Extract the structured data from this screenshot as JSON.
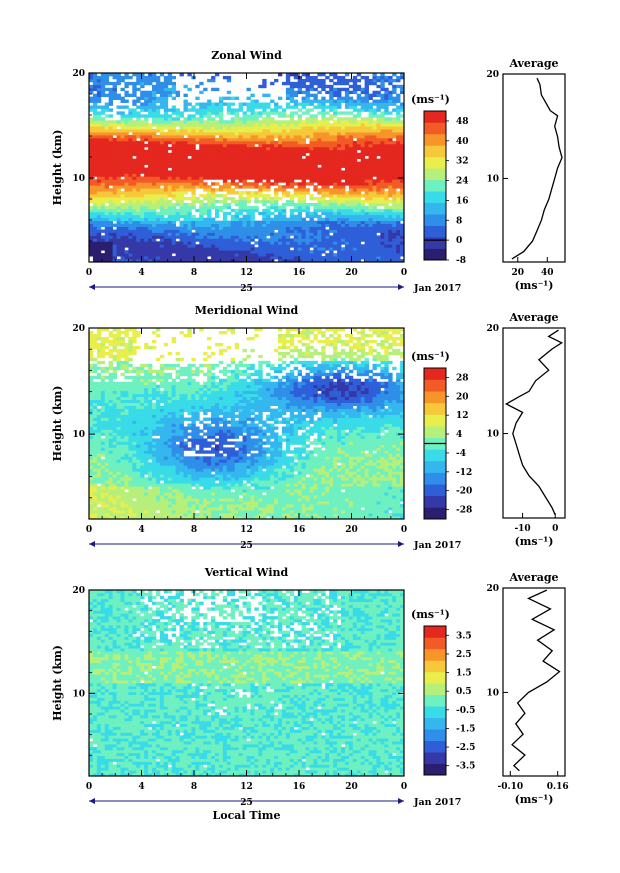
{
  "chart_data": [
    {
      "type": "heatmap",
      "id": "zonal",
      "title": "Zonal Wind",
      "ylabel": "Height (km)",
      "ylim": [
        2,
        20
      ],
      "y_ticks": [
        "10",
        "20"
      ],
      "x_ticks": [
        "0",
        "4",
        "8",
        "12",
        "16",
        "20",
        "0"
      ],
      "date_labels": {
        "day": "25",
        "month_year": "Jan 2017"
      },
      "colorbar": {
        "unit": "(ms⁻¹)",
        "ticks": [
          "48",
          "40",
          "32",
          "24",
          "16",
          "8",
          "0",
          "-8"
        ],
        "range": [
          -8,
          52
        ],
        "zero_line": 0
      },
      "profile": {
        "title": "Average",
        "xlabel": "(ms⁻¹)",
        "x_ticks": [
          "20",
          "40"
        ],
        "xlim": [
          10,
          52
        ],
        "heights": [
          2.3,
          3,
          4,
          5,
          6,
          7,
          8,
          9,
          10,
          11,
          12,
          13,
          14,
          15,
          16,
          16.5,
          17,
          18,
          19,
          19.6
        ],
        "values": [
          16,
          24,
          30,
          33,
          36,
          38,
          41,
          43,
          45,
          47,
          50,
          48,
          47,
          45,
          47,
          42,
          40,
          36,
          35,
          33
        ]
      }
    },
    {
      "type": "heatmap",
      "id": "meridional",
      "title": "Meridional Wind",
      "ylabel": "Height (km)",
      "ylim": [
        2,
        20
      ],
      "y_ticks": [
        "10",
        "20"
      ],
      "x_ticks": [
        "0",
        "4",
        "8",
        "12",
        "16",
        "20",
        "0"
      ],
      "date_labels": {
        "day": "25",
        "month_year": "Jan 2017"
      },
      "colorbar": {
        "unit": "(ms⁻¹)",
        "ticks": [
          "28",
          "20",
          "12",
          "4",
          "-4",
          "-12",
          "-20",
          "-28"
        ],
        "range": [
          -32,
          32
        ],
        "zero_line": 0
      },
      "profile": {
        "title": "Average",
        "xlabel": "(ms⁻¹)",
        "x_ticks": [
          "-10",
          "0"
        ],
        "xlim": [
          -16,
          3
        ],
        "heights": [
          2.3,
          3,
          4,
          5,
          6,
          7,
          8,
          9,
          10,
          11,
          12,
          12.8,
          13.5,
          14,
          15,
          16,
          17,
          18,
          18.6,
          19.2,
          19.8
        ],
        "values": [
          0,
          -1,
          -3,
          -5,
          -8,
          -10,
          -11,
          -12,
          -13,
          -12,
          -10,
          -15,
          -11,
          -8,
          -6,
          -2,
          -5,
          -1,
          2,
          -2,
          1
        ]
      }
    },
    {
      "type": "heatmap",
      "id": "vertical",
      "title": "Vertical Wind",
      "ylabel": "Height (km)",
      "xlabel": "Local Time",
      "ylim": [
        2,
        20
      ],
      "y_ticks": [
        "10",
        "20"
      ],
      "x_ticks": [
        "0",
        "4",
        "8",
        "12",
        "16",
        "20",
        "0"
      ],
      "date_labels": {
        "day": "25",
        "month_year": "Jan 2017"
      },
      "colorbar": {
        "unit": "(ms⁻¹)",
        "ticks": [
          "3.5",
          "2.5",
          "1.5",
          "0.5",
          "-0.5",
          "-1.5",
          "-2.5",
          "-3.5"
        ],
        "range": [
          -4,
          4
        ]
      },
      "profile": {
        "title": "Average",
        "xlabel": "(ms⁻¹)",
        "x_ticks": [
          "-0.10",
          "0.16"
        ],
        "xlim": [
          -0.14,
          0.2
        ],
        "heights": [
          2.5,
          3,
          4,
          5,
          6,
          7,
          8,
          9,
          10,
          11,
          12,
          13,
          14,
          15,
          16,
          17,
          18,
          19,
          19.8
        ],
        "values": [
          -0.05,
          -0.08,
          -0.02,
          -0.09,
          -0.03,
          -0.07,
          -0.02,
          -0.06,
          0.0,
          0.1,
          0.17,
          0.08,
          0.13,
          0.05,
          0.14,
          0.02,
          0.12,
          0.0,
          0.1
        ]
      }
    }
  ]
}
